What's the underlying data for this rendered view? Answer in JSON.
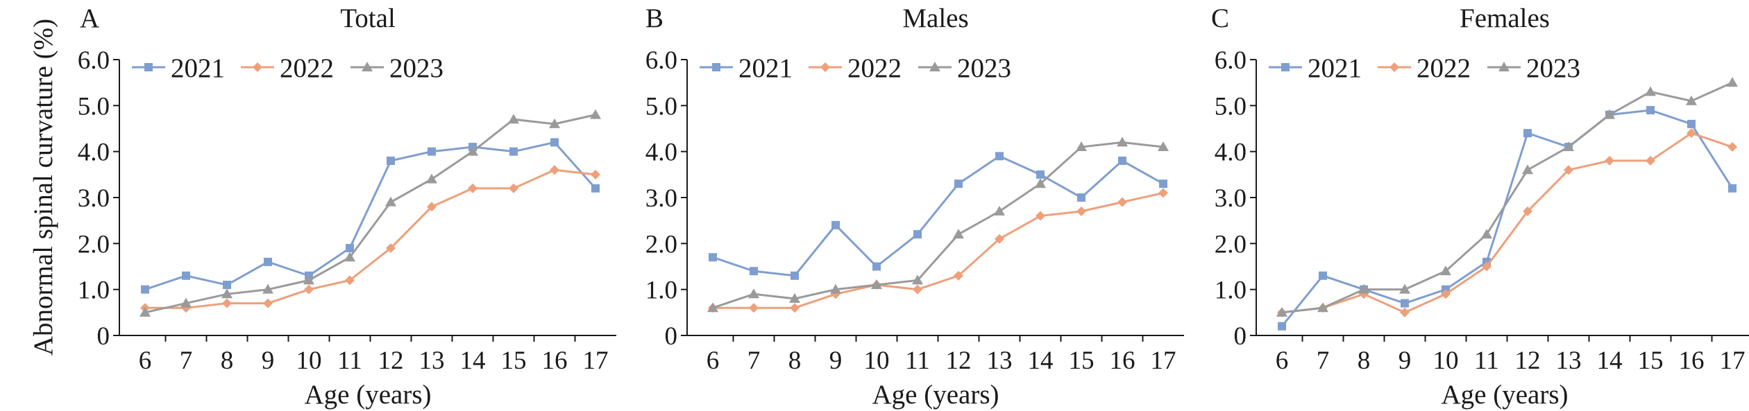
{
  "y_axis_title": "Abnormal spinal curvature (%)",
  "legend_labels": [
    "2021",
    "2022",
    "2023"
  ],
  "colors": {
    "2021": "#7f9ed0",
    "2022": "#eda07a",
    "2023": "#9a9a9a"
  },
  "markers": {
    "2021": "square",
    "2022": "diamond",
    "2023": "triangle"
  },
  "chart_data": [
    {
      "type": "line",
      "panel_letter": "A",
      "title": "Total",
      "xlabel": "Age (years)",
      "ylabel": "Abnormal spinal curvature (%)",
      "x": [
        6,
        7,
        8,
        9,
        10,
        11,
        12,
        13,
        14,
        15,
        16,
        17
      ],
      "ylim": [
        0,
        6
      ],
      "yticks": [
        "0",
        "1.0",
        "2.0",
        "3.0",
        "4.0",
        "5.0",
        "6.0"
      ],
      "legend_position": "top-left",
      "grid": false,
      "series": [
        {
          "name": "2021",
          "values": [
            1.0,
            1.3,
            1.1,
            1.6,
            1.3,
            1.9,
            3.8,
            4.0,
            4.1,
            4.0,
            4.2,
            3.2
          ]
        },
        {
          "name": "2022",
          "values": [
            0.6,
            0.6,
            0.7,
            0.7,
            1.0,
            1.2,
            1.9,
            2.8,
            3.2,
            3.2,
            3.6,
            3.5
          ]
        },
        {
          "name": "2023",
          "values": [
            0.5,
            0.7,
            0.9,
            1.0,
            1.2,
            1.7,
            2.9,
            3.4,
            4.0,
            4.7,
            4.6,
            4.8
          ]
        }
      ]
    },
    {
      "type": "line",
      "panel_letter": "B",
      "title": "Males",
      "xlabel": "Age (years)",
      "ylabel": "",
      "x": [
        6,
        7,
        8,
        9,
        10,
        11,
        12,
        13,
        14,
        15,
        16,
        17
      ],
      "ylim": [
        0,
        6
      ],
      "yticks": [
        "0",
        "1.0",
        "2.0",
        "3.0",
        "4.0",
        "5.0",
        "6.0"
      ],
      "legend_position": "top-left",
      "grid": false,
      "series": [
        {
          "name": "2021",
          "values": [
            1.7,
            1.4,
            1.3,
            2.4,
            1.5,
            2.2,
            3.3,
            3.9,
            3.5,
            3.0,
            3.8,
            3.3
          ]
        },
        {
          "name": "2022",
          "values": [
            0.6,
            0.6,
            0.6,
            0.9,
            1.1,
            1.0,
            1.3,
            2.1,
            2.6,
            2.7,
            2.9,
            3.1
          ]
        },
        {
          "name": "2023",
          "values": [
            0.6,
            0.9,
            0.8,
            1.0,
            1.1,
            1.2,
            2.2,
            2.7,
            3.3,
            4.1,
            4.2,
            4.1
          ]
        }
      ]
    },
    {
      "type": "line",
      "panel_letter": "C",
      "title": "Females",
      "xlabel": "Age (years)",
      "ylabel": "",
      "x": [
        6,
        7,
        8,
        9,
        10,
        11,
        12,
        13,
        14,
        15,
        16,
        17
      ],
      "ylim": [
        0,
        6
      ],
      "yticks": [
        "0",
        "1.0",
        "2.0",
        "3.0",
        "4.0",
        "5.0",
        "6.0"
      ],
      "legend_position": "top-left",
      "grid": false,
      "series": [
        {
          "name": "2021",
          "values": [
            0.2,
            1.3,
            1.0,
            0.7,
            1.0,
            1.6,
            4.4,
            4.1,
            4.8,
            4.9,
            4.6,
            3.2
          ]
        },
        {
          "name": "2022",
          "values": [
            0.5,
            0.6,
            0.9,
            0.5,
            0.9,
            1.5,
            2.7,
            3.6,
            3.8,
            3.8,
            4.4,
            4.1
          ]
        },
        {
          "name": "2023",
          "values": [
            0.5,
            0.6,
            1.0,
            1.0,
            1.4,
            2.2,
            3.6,
            4.1,
            4.8,
            5.3,
            5.1,
            5.5
          ]
        }
      ]
    }
  ]
}
